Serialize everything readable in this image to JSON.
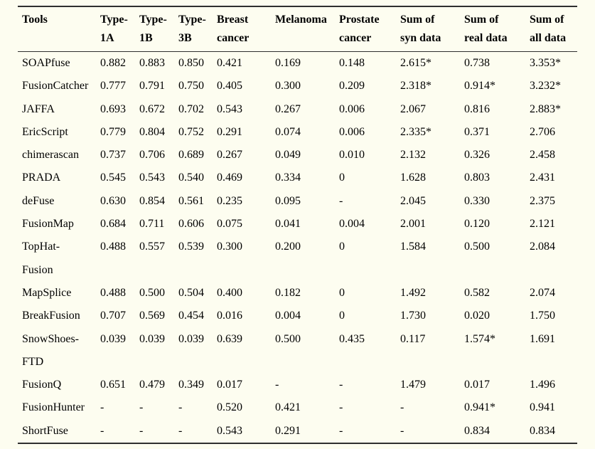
{
  "colors": {
    "page_background": "#fdfdf0",
    "text": "#000000",
    "rule": "#2f2f2f"
  },
  "table": {
    "columns": [
      "Tools",
      "Type-\n1A",
      "Type-\n1B",
      "Type-\n3B",
      "Breast\ncancer",
      "Melanoma",
      "Prostate\ncancer",
      "Sum of\nsyn data",
      "Sum of\nreal data",
      "Sum of\nall data"
    ],
    "rows": [
      {
        "cells": [
          "SOAPfuse",
          "0.882",
          "0.883",
          "0.850",
          "0.421",
          "0.169",
          "0.148",
          "2.615*",
          "0.738",
          "3.353*"
        ]
      },
      {
        "cells": [
          "FusionCatcher",
          "0.777",
          "0.791",
          "0.750",
          "0.405",
          "0.300",
          "0.209",
          "2.318*",
          "0.914*",
          "3.232*"
        ]
      },
      {
        "cells": [
          "JAFFA",
          "0.693",
          "0.672",
          "0.702",
          "0.543",
          "0.267",
          "0.006",
          "2.067",
          "0.816",
          "2.883*"
        ]
      },
      {
        "cells": [
          "EricScript",
          "0.779",
          "0.804",
          "0.752",
          "0.291",
          "0.074",
          "0.006",
          "2.335*",
          "0.371",
          "2.706"
        ]
      },
      {
        "cells": [
          "chimerascan",
          "0.737",
          "0.706",
          "0.689",
          "0.267",
          "0.049",
          "0.010",
          "2.132",
          "0.326",
          "2.458"
        ]
      },
      {
        "cells": [
          "PRADA",
          "0.545",
          "0.543",
          "0.540",
          "0.469",
          "0.334",
          "0",
          "1.628",
          "0.803",
          "2.431"
        ]
      },
      {
        "cells": [
          "deFuse",
          "0.630",
          "0.854",
          "0.561",
          "0.235",
          "0.095",
          "-",
          "2.045",
          "0.330",
          "2.375"
        ]
      },
      {
        "cells": [
          "FusionMap",
          "0.684",
          "0.711",
          "0.606",
          "0.075",
          "0.041",
          "0.004",
          "2.001",
          "0.120",
          "2.121"
        ]
      },
      {
        "cells": [
          "TopHat-\nFusion",
          "0.488",
          "0.557",
          "0.539",
          "0.300",
          "0.200",
          "0",
          "1.584",
          "0.500",
          "2.084"
        ]
      },
      {
        "cells": [
          "MapSplice",
          "0.488",
          "0.500",
          "0.504",
          "0.400",
          "0.182",
          "0",
          "1.492",
          "0.582",
          "2.074"
        ]
      },
      {
        "cells": [
          "BreakFusion",
          "0.707",
          "0.569",
          "0.454",
          "0.016",
          "0.004",
          "0",
          "1.730",
          "0.020",
          "1.750"
        ]
      },
      {
        "cells": [
          "SnowShoes-\nFTD",
          "0.039",
          "0.039",
          "0.039",
          "0.639",
          "0.500",
          "0.435",
          "0.117",
          "1.574*",
          "1.691"
        ]
      },
      {
        "cells": [
          "FusionQ",
          "0.651",
          "0.479",
          "0.349",
          "0.017",
          "-",
          "-",
          "1.479",
          "0.017",
          "1.496"
        ]
      },
      {
        "cells": [
          "FusionHunter",
          "-",
          "-",
          "-",
          "0.520",
          "0.421",
          "-",
          "-",
          "0.941*",
          "0.941"
        ]
      },
      {
        "cells": [
          "ShortFuse",
          "-",
          "-",
          "-",
          "0.543",
          "0.291",
          "-",
          "-",
          "0.834",
          "0.834"
        ]
      }
    ]
  }
}
